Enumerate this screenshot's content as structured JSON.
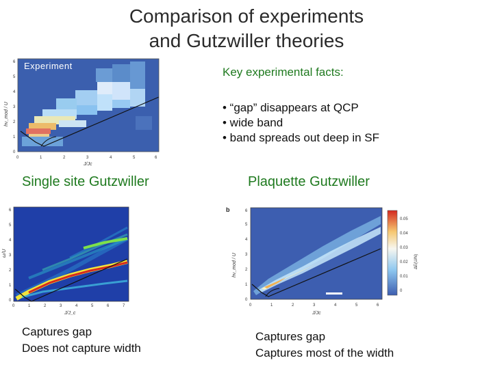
{
  "slide": {
    "title_line1": "Comparison of experiments",
    "title_line2": "and Gutzwiller theories",
    "experiment_label": "Experiment",
    "key_facts_title": "Key experimental facts:",
    "facts": [
      "• “gap” disappears at QCP",
      "• wide band",
      "• band spreads out deep in SF"
    ],
    "single_site_title": "Single site Gutzwiller",
    "plaquette_title": "Plaquette Gutzwiller",
    "single_site_caption": [
      "Captures gap",
      "Does not capture width"
    ],
    "plaquette_caption": [
      "Captures gap",
      "Captures most of the width"
    ]
  },
  "experiment_plot": {
    "y_axis_label": "hν_mod / U",
    "x_axis_label": "J/Jc",
    "x_ticks": [
      "0",
      "1",
      "2",
      "3",
      "4",
      "5",
      "6"
    ],
    "y_ticks": [
      "0",
      "1",
      "2",
      "3",
      "4",
      "5",
      "6"
    ]
  },
  "single_site_plot": {
    "y_axis_label": "ω/U",
    "x_axis_label": "J/J_c",
    "x_ticks": [
      "0",
      "1",
      "2",
      "3",
      "4",
      "5",
      "6",
      "7"
    ],
    "y_ticks": [
      "0",
      "1",
      "2",
      "3",
      "4",
      "5",
      "6"
    ]
  },
  "plaquette_plot": {
    "panel_letter": "b",
    "y_axis_label": "hν_mod / U",
    "x_axis_label": "J/Jc",
    "x_ticks": [
      "0",
      "1",
      "2",
      "3",
      "4",
      "5",
      "6"
    ],
    "y_ticks": [
      "0",
      "1",
      "2",
      "3",
      "4",
      "5",
      "6"
    ],
    "colorbar_label": "ΔE(U/N)",
    "colorbar_ticks": [
      "0.05",
      "0.04",
      "0.03",
      "0.02",
      "0.01",
      "0"
    ]
  }
}
